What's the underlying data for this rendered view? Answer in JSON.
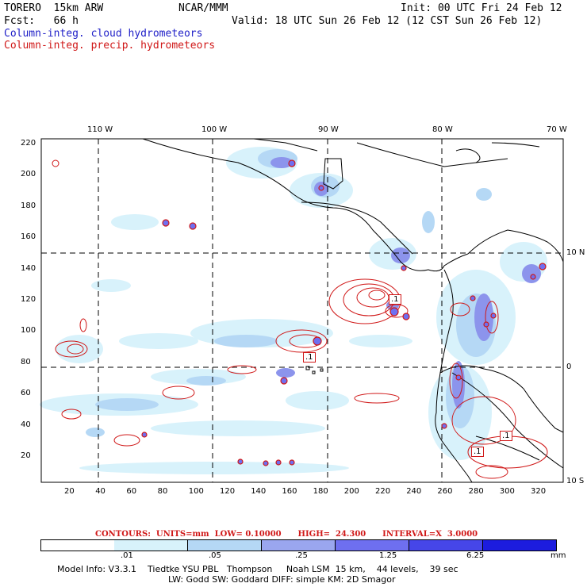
{
  "header": {
    "model": "TORERO  15km ARW",
    "org": "NCAR/MMM",
    "init": "Init: 00 UTC Fri 24 Feb 12",
    "fcst": "Fcst:   66 h",
    "valid": "Valid: 18 UTC Sun 26 Feb 12 (12 CST Sun 26 Feb 12)",
    "field1": "Column-integ. cloud hydrometeors",
    "field2": "Column-integ. precip. hydrometeors"
  },
  "axes": {
    "top_lon": [
      "110 W",
      "100 W",
      "90 W",
      "80 W",
      "70 W"
    ],
    "right_lat": [
      "10 N",
      "0",
      "10 S"
    ],
    "y_ticks": [
      "220",
      "200",
      "180",
      "160",
      "140",
      "120",
      "100",
      "80",
      "60",
      "40",
      "20"
    ],
    "x_ticks": [
      "20",
      "40",
      "60",
      "80",
      "100",
      "120",
      "140",
      "160",
      "180",
      "200",
      "220",
      "240",
      "260",
      "280",
      "300",
      "320"
    ]
  },
  "contour_label": "CONTOURS:  UNITS=mm  LOW= 0.10000      HIGH=  24.300      INTERVAL=X  3.0000",
  "colorbar": {
    "labels": [
      ".01",
      ".05",
      ".25",
      "1.25",
      "6.25"
    ],
    "unit": "mm",
    "colors": [
      "#ffffff",
      "#d8f2fb",
      "#b5d8f5",
      "#9aa6ef",
      "#6e6ff0",
      "#4646e8",
      "#1c1cde"
    ]
  },
  "contour_markers": [
    ".1",
    ".1",
    ".1",
    ".1"
  ],
  "model_info": {
    "line1": "Model Info: V3.3.1    Tiedtke YSU PBL   Thompson     Noah LSM  15 km,    44 levels,    39 sec",
    "line2": "LW: Godd SW: Goddard DIFF: simple KM: 2D Smagor"
  },
  "colors": {
    "cloud_text": "#2020c8",
    "precip_text": "#d01818"
  }
}
